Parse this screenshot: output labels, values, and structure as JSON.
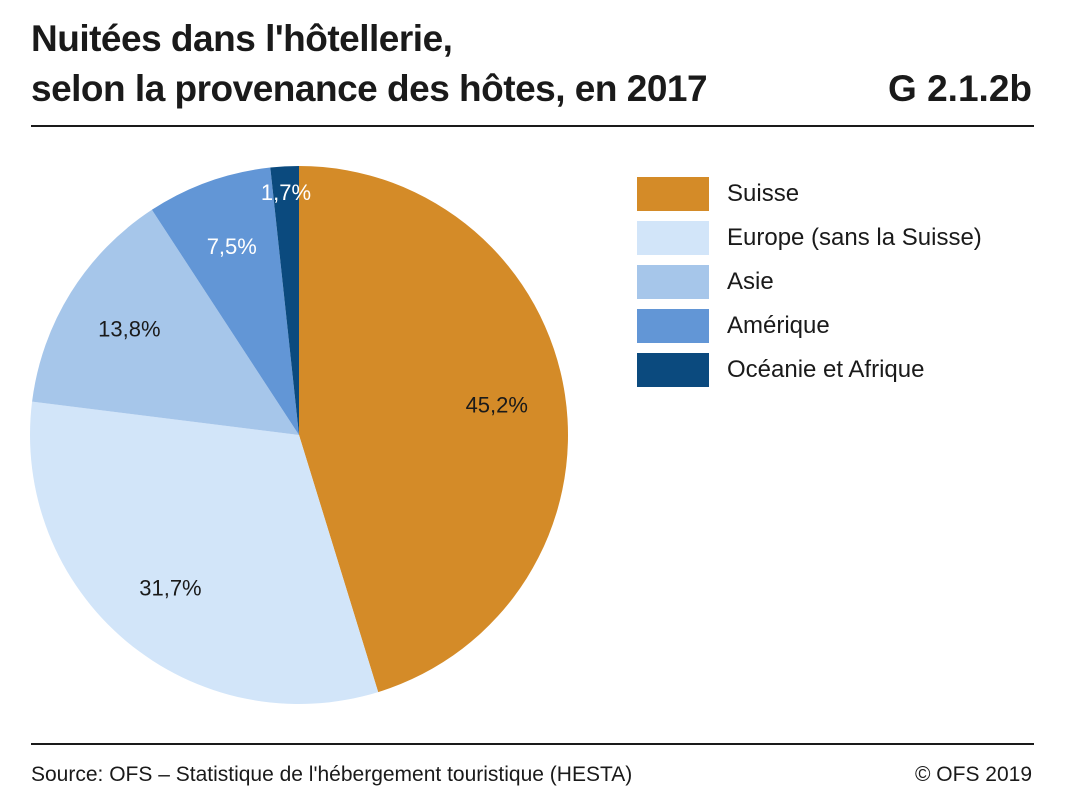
{
  "header": {
    "title_line1": "Nuitées dans l'hôtellerie,",
    "title_line2": "selon la provenance des hôtes, en 2017",
    "chart_id": "G 2.1.2b"
  },
  "footer": {
    "source": "Source: OFS – Statistique de l'hébergement touristique (HESTA)",
    "copyright": "© OFS 2019"
  },
  "chart_data": {
    "type": "pie",
    "title": "Nuitées dans l'hôtellerie, selon la provenance des hôtes, en 2017",
    "legend_position": "right",
    "slices": [
      {
        "name": "Suisse",
        "value": 45.2,
        "label": "45,2%",
        "color": "#d48b28",
        "label_color": "#1a1a1a"
      },
      {
        "name": "Europe (sans la Suisse)",
        "value": 31.7,
        "label": "31,7%",
        "color": "#d2e5f9",
        "label_color": "#1a1a1a"
      },
      {
        "name": "Asie",
        "value": 13.8,
        "label": "13,8%",
        "color": "#a6c6ea",
        "label_color": "#1a1a1a"
      },
      {
        "name": "Amérique",
        "value": 7.5,
        "label": "7,5%",
        "color": "#6296d6",
        "label_color": "#ffffff"
      },
      {
        "name": "Océanie et Afrique",
        "value": 1.7,
        "label": "1,7%",
        "color": "#0b4a7e",
        "label_color": "#ffffff"
      }
    ]
  }
}
